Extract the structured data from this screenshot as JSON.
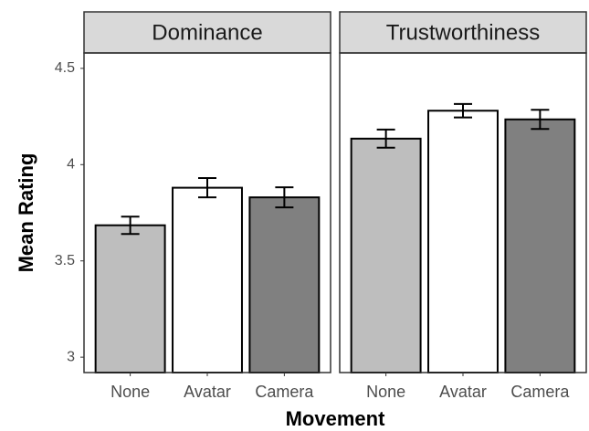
{
  "chart_data": {
    "type": "bar",
    "xlabel": "Movement",
    "ylabel": "Mean Rating",
    "ylim": [
      2.92,
      4.58
    ],
    "yticks": [
      3.0,
      3.5,
      4.0,
      4.5
    ],
    "colors": [
      "#bebebe",
      "#ffffff",
      "#808080"
    ],
    "facets": [
      {
        "title": "Dominance",
        "categories": [
          "None",
          "Avatar",
          "Camera"
        ],
        "values": [
          3.685,
          3.88,
          3.83
        ],
        "errors": [
          0.045,
          0.05,
          0.052
        ]
      },
      {
        "title": "Trustworthiness",
        "categories": [
          "None",
          "Avatar",
          "Camera"
        ],
        "values": [
          4.135,
          4.28,
          4.235
        ],
        "errors": [
          0.047,
          0.035,
          0.05
        ]
      }
    ]
  }
}
